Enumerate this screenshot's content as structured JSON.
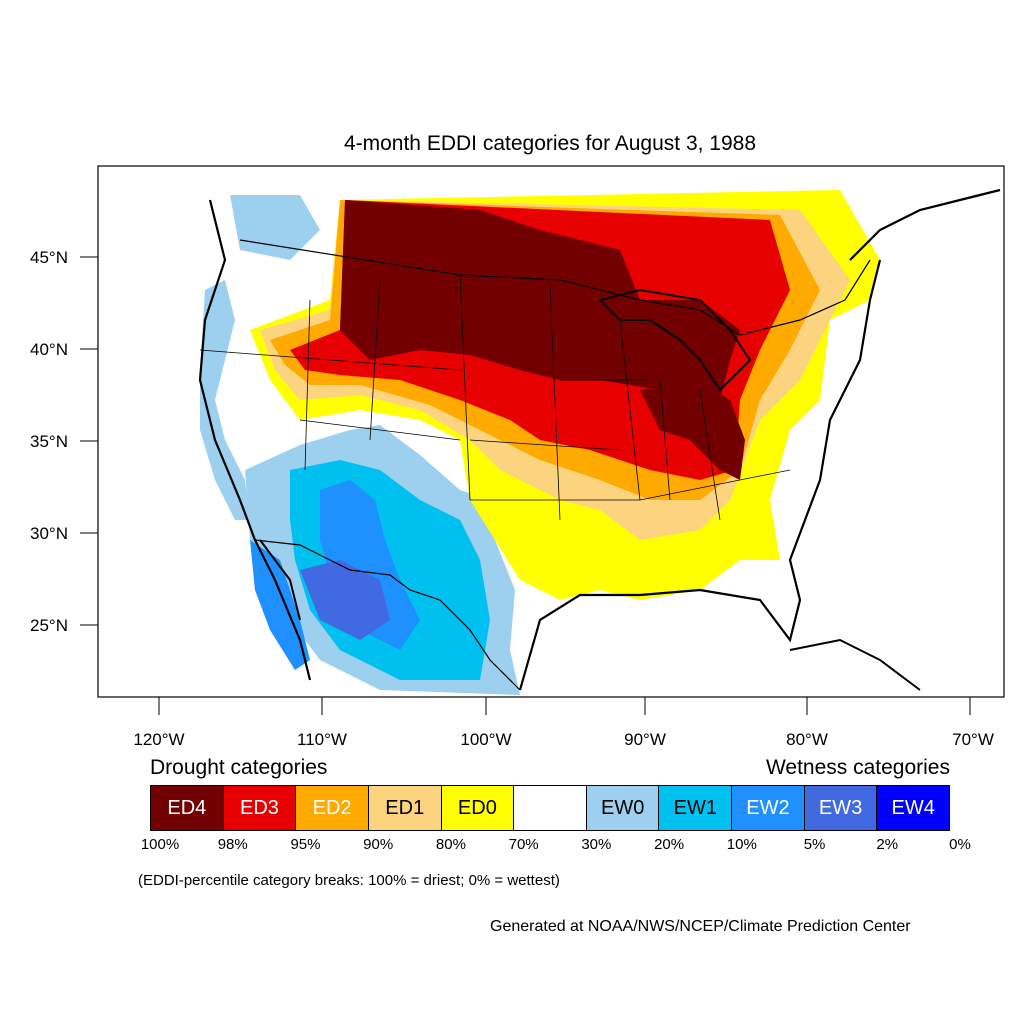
{
  "title": "4-month EDDI categories for August 3, 1988",
  "lat_labels": [
    "45°N",
    "40°N",
    "35°N",
    "30°N",
    "25°N"
  ],
  "lon_labels": [
    "120°W",
    "110°W",
    "100°W",
    "90°W",
    "80°W",
    "70°W"
  ],
  "legend": {
    "drought_heading": "Drought categories",
    "wetness_heading": "Wetness categories",
    "categories": [
      {
        "label": "ED4",
        "color": "#730000",
        "text_color": "#ffffff"
      },
      {
        "label": "ED3",
        "color": "#e60000",
        "text_color": "#ffffff"
      },
      {
        "label": "ED2",
        "color": "#ffaa00",
        "text_color": "#ffffff"
      },
      {
        "label": "ED1",
        "color": "#fcd37f",
        "text_color": "#000000"
      },
      {
        "label": "ED0",
        "color": "#ffff00",
        "text_color": "#000000"
      },
      {
        "label": "",
        "color": "#ffffff",
        "text_color": "#000000"
      },
      {
        "label": "EW0",
        "color": "#9dd0ef",
        "text_color": "#000000"
      },
      {
        "label": "EW1",
        "color": "#00c0f0",
        "text_color": "#000000"
      },
      {
        "label": "EW2",
        "color": "#1e90ff",
        "text_color": "#ffffff"
      },
      {
        "label": "EW3",
        "color": "#4169e1",
        "text_color": "#ffffff"
      },
      {
        "label": "EW4",
        "color": "#0000ff",
        "text_color": "#ffffff"
      }
    ],
    "breaks": [
      "100%",
      "98%",
      "95%",
      "90%",
      "80%",
      "70%",
      "30%",
      "20%",
      "10%",
      "5%",
      "2%",
      "0%"
    ]
  },
  "note": "(EDDI-percentile category breaks: 100% = driest; 0% = wettest)",
  "credit": "Generated at NOAA/NWS/NCEP/Climate Prediction Center"
}
